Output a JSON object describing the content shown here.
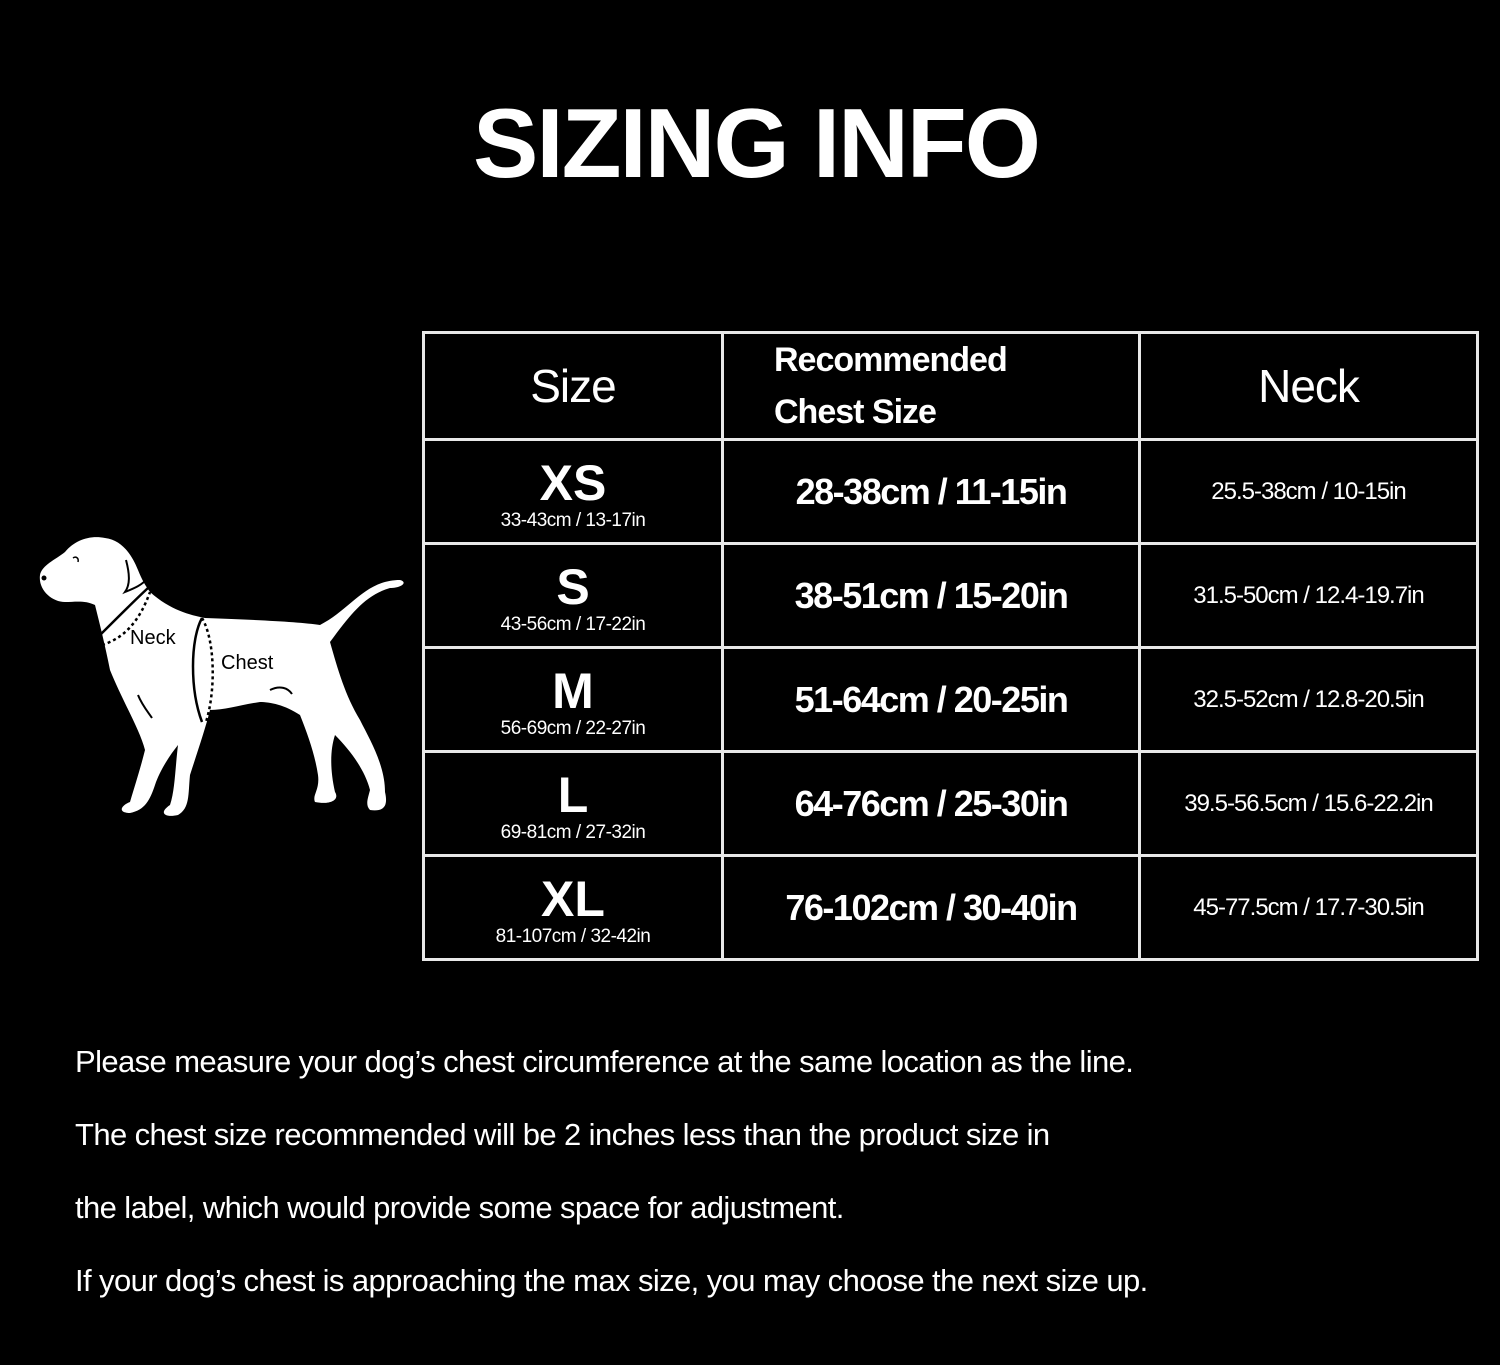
{
  "title": "SIZING INFO",
  "diagram": {
    "neck_label": "Neck",
    "chest_label": "Chest",
    "icon": "dog-silhouette-icon"
  },
  "table": {
    "headers": {
      "size": "Size",
      "chest_line1": "Recommended",
      "chest_line2": "Chest Size",
      "neck": "Neck"
    },
    "rows": [
      {
        "size": "XS",
        "product": "33-43cm / 13-17in",
        "chest": "28-38cm / 11-15in",
        "neck": "25.5-38cm / 10-15in"
      },
      {
        "size": "S",
        "product": "43-56cm / 17-22in",
        "chest": "38-51cm / 15-20in",
        "neck": "31.5-50cm / 12.4-19.7in"
      },
      {
        "size": "M",
        "product": "56-69cm / 22-27in",
        "chest": "51-64cm / 20-25in",
        "neck": "32.5-52cm / 12.8-20.5in"
      },
      {
        "size": "L",
        "product": "69-81cm / 27-32in",
        "chest": "64-76cm / 25-30in",
        "neck": "39.5-56.5cm / 15.6-22.2in"
      },
      {
        "size": "XL",
        "product": "81-107cm / 32-42in",
        "chest": "76-102cm / 30-40in",
        "neck": "45-77.5cm / 17.7-30.5in"
      }
    ]
  },
  "notes": [
    "Please measure your dog’s chest circumference at the same location as the line.",
    "The chest size recommended will be 2 inches less than the product size in",
    "the label, which would provide some space for adjustment.",
    "If your dog’s chest is approaching the max size, you may choose the next size up."
  ]
}
